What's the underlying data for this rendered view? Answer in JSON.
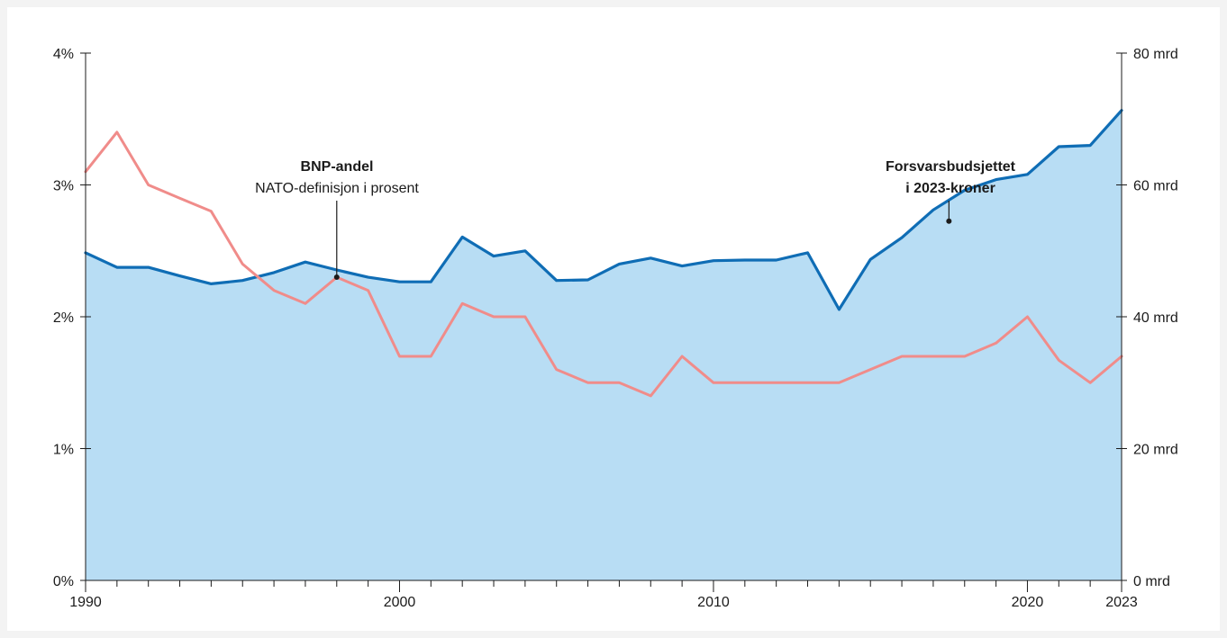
{
  "chart_data": {
    "type": "area",
    "x": [
      1990,
      1991,
      1992,
      1993,
      1994,
      1995,
      1996,
      1997,
      1998,
      1999,
      2000,
      2001,
      2002,
      2003,
      2004,
      2005,
      2006,
      2007,
      2008,
      2009,
      2010,
      2011,
      2012,
      2013,
      2014,
      2015,
      2016,
      2017,
      2018,
      2019,
      2020,
      2021,
      2022,
      2023
    ],
    "x_ticks": [
      1990,
      2000,
      2010,
      2020,
      2023
    ],
    "x_range": [
      1990,
      2023
    ],
    "series": [
      {
        "axis": "right",
        "render": "area+line",
        "values": [
          49.7,
          47.5,
          47.5,
          46.2,
          45.0,
          45.5,
          46.7,
          48.3,
          47.1,
          46.0,
          45.3,
          45.3,
          52.1,
          49.2,
          50.0,
          45.5,
          45.6,
          48.0,
          48.9,
          47.7,
          48.5,
          48.6,
          48.6,
          49.7,
          41.1,
          48.7,
          52.0,
          56.2,
          59.2,
          60.8,
          61.6,
          65.8,
          66.0,
          71.3
        ],
        "color": "#0f6db5",
        "fill": "#b8ddf4"
      },
      {
        "axis": "left",
        "render": "line",
        "values": [
          3.1,
          3.4,
          3.0,
          2.9,
          2.8,
          2.4,
          2.2,
          2.1,
          2.3,
          2.2,
          1.7,
          1.7,
          2.1,
          2.0,
          2.0,
          1.6,
          1.5,
          1.5,
          1.4,
          1.7,
          1.5,
          1.5,
          1.5,
          1.5,
          1.5,
          1.6,
          1.7,
          1.7,
          1.7,
          1.8,
          2.0,
          1.67,
          1.5,
          1.7
        ],
        "color": "#f08c8a"
      }
    ],
    "y_left": {
      "range": [
        0,
        4
      ],
      "ticks": [
        0,
        1,
        2,
        3,
        4
      ],
      "tick_labels": [
        "0%",
        "1%",
        "2%",
        "3%",
        "4%"
      ]
    },
    "y_right": {
      "range": [
        0,
        80
      ],
      "ticks": [
        0,
        20,
        40,
        60,
        80
      ],
      "tick_labels": [
        "0 mrd",
        "20 mrd",
        "40 mrd",
        "60 mrd",
        "80 mrd"
      ]
    },
    "annotations": [
      {
        "bold": "BNP-andel",
        "text": "NATO-definisjon i prosent",
        "x": 1998,
        "y": 2.3,
        "axis": "left"
      },
      {
        "bold": "Forsvarsbudsjettet",
        "bold2": "i 2023-kroner",
        "x": 2017.5,
        "y": 54.5,
        "axis": "right"
      }
    ],
    "grid": false,
    "legend": "none"
  },
  "colors": {
    "background": "#f3f3f3",
    "plot_background": "#ffffff",
    "axis": "#1b1b1b"
  }
}
